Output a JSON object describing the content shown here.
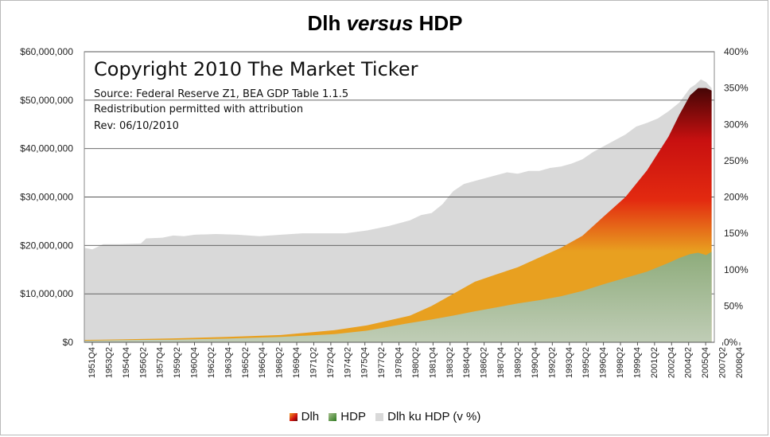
{
  "chart_data": {
    "type": "area",
    "title_parts": [
      "Dlh ",
      "versus",
      " HDP"
    ],
    "annotation": {
      "line1": "Copyright 2010 The Market Ticker",
      "line2": "Source: Federal Reserve Z1, BEA GDP Table 1.1.5",
      "line3": "Redistribution permitted with attribution",
      "line4": "Rev:  06/10/2010"
    },
    "y_left": {
      "ylim": [
        0,
        60000000
      ],
      "ticks": [
        "$0",
        "$10,000,000",
        "$20,000,000",
        "$30,000,000",
        "$40,000,000",
        "$50,000,000",
        "$60,000,000"
      ]
    },
    "y_right": {
      "ylim": [
        0,
        400
      ],
      "ticks": [
        "0%",
        "50%",
        "100%",
        "150%",
        "200%",
        "250%",
        "300%",
        "350%",
        "400%"
      ]
    },
    "x_tick_labels": [
      "1951Q4",
      "1953Q2",
      "1954Q4",
      "1956Q2",
      "1957Q4",
      "1959Q2",
      "1960Q4",
      "1962Q2",
      "1963Q4",
      "1965Q2",
      "1966Q4",
      "1968Q2",
      "1969Q4",
      "1971Q2",
      "1972Q4",
      "1974Q2",
      "1975Q4",
      "1977Q2",
      "1978Q4",
      "1980Q2",
      "1981Q4",
      "1983Q2",
      "1984Q4",
      "1986Q2",
      "1987Q4",
      "1989Q2",
      "1990Q4",
      "1992Q2",
      "1993Q4",
      "1995Q2",
      "1996Q4",
      "1998Q2",
      "1999Q4",
      "2001Q2",
      "2002Q4",
      "2004Q2",
      "2005Q4",
      "2007Q2",
      "2008Q4"
    ],
    "series": [
      {
        "name": "Dlh",
        "axis": "left",
        "x": [
          1951.75,
          1955,
          1960,
          1965,
          1970,
          1975,
          1978,
          1980,
          1982,
          1984,
          1986,
          1988,
          1990,
          1992,
          1994,
          1996,
          1998,
          2000,
          2002,
          2004,
          2006,
          2007,
          2008,
          2008.75,
          2009.5,
          2010
        ],
        "values": [
          500000,
          600000,
          800000,
          1100000,
          1500000,
          2500000,
          3500000,
          4500000,
          5500000,
          7500000,
          10000000,
          12500000,
          14000000,
          15500000,
          17500000,
          19500000,
          22000000,
          26000000,
          30000000,
          35500000,
          42500000,
          47000000,
          51000000,
          52500000,
          52500000,
          52000000
        ]
      },
      {
        "name": "HDP",
        "axis": "left",
        "x": [
          1951.75,
          1955,
          1960,
          1965,
          1970,
          1975,
          1978,
          1980,
          1982,
          1984,
          1986,
          1988,
          1990,
          1992,
          1994,
          1996,
          1998,
          2000,
          2002,
          2004,
          2006,
          2007,
          2008,
          2008.75,
          2009.5,
          2010
        ],
        "values": [
          350000,
          450000,
          550000,
          750000,
          1100000,
          1700000,
          2400000,
          3200000,
          4000000,
          4700000,
          5500000,
          6400000,
          7200000,
          8000000,
          8700000,
          9500000,
          10600000,
          12000000,
          13300000,
          14600000,
          16400000,
          17400000,
          18200000,
          18500000,
          18000000,
          18700000
        ]
      },
      {
        "name": "Dlh ku HDP (v %)",
        "axis": "right",
        "x": [
          1951.75,
          1952.5,
          1953.5,
          1955,
          1957,
          1957.5,
          1959,
          1960,
          1961,
          1962,
          1964,
          1966,
          1968,
          1970,
          1972,
          1974,
          1976,
          1978,
          1980,
          1982,
          1983,
          1984,
          1985,
          1986,
          1987,
          1988,
          1989,
          1990,
          1991,
          1992,
          1993,
          1994,
          1995,
          1996,
          1997,
          1998,
          1999,
          2000,
          2001,
          2002,
          2003,
          2004,
          2005,
          2006,
          2007,
          2008,
          2008.5,
          2009,
          2009.5,
          2010
        ],
        "values": [
          130,
          128,
          135,
          135,
          136,
          143,
          144,
          147,
          146,
          148,
          149,
          148,
          146,
          148,
          150,
          150,
          150,
          154,
          160,
          168,
          175,
          178,
          190,
          208,
          218,
          222,
          226,
          230,
          234,
          232,
          236,
          236,
          240,
          242,
          246,
          252,
          262,
          270,
          278,
          286,
          297,
          302,
          308,
          318,
          330,
          350,
          355,
          362,
          358,
          350
        ]
      }
    ]
  },
  "legend": {
    "dlh": "Dlh",
    "hdp": "HDP",
    "ratio": "Dlh ku HDP (v %)"
  },
  "colors": {
    "ratio_fill": "#d9d9d9",
    "dlh_dark": "#5a0a0a",
    "dlh_red": "#e01010",
    "dlh_orange": "#e8a020",
    "hdp_dark": "#2e7a1e",
    "hdp_light": "#b0c4a4",
    "gridline": "#555555",
    "axis": "#888888"
  }
}
